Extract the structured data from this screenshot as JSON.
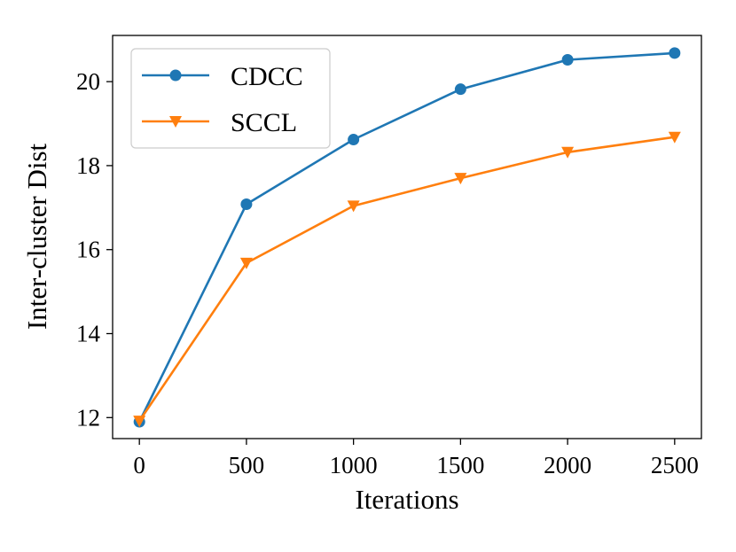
{
  "chart_data": {
    "type": "line",
    "title": "",
    "xlabel": "Iterations",
    "ylabel": "Inter-cluster Dist",
    "x": [
      0,
      500,
      1000,
      1500,
      2000,
      2500
    ],
    "xticks": [
      0,
      500,
      1000,
      1500,
      2000,
      2500
    ],
    "yticks": [
      12,
      14,
      16,
      18,
      20
    ],
    "xlim": [
      -125,
      2625
    ],
    "ylim": [
      11.5,
      21.1
    ],
    "grid": false,
    "legend_position": "top-left",
    "series": [
      {
        "name": "CDCC",
        "color": "#1f77b4",
        "marker": "circle",
        "values": [
          11.9,
          17.08,
          18.62,
          19.82,
          20.52,
          20.68
        ]
      },
      {
        "name": "SCCL",
        "color": "#ff7f0e",
        "marker": "triangle-down",
        "values": [
          11.92,
          15.68,
          17.04,
          17.7,
          18.32,
          18.68
        ]
      }
    ]
  }
}
